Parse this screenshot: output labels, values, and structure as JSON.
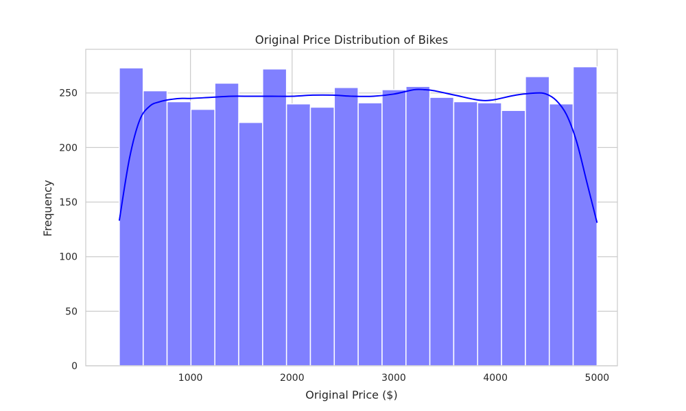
{
  "chart_data": {
    "type": "bar",
    "title": "Original Price Distribution of Bikes",
    "xlabel": "Original Price ($)",
    "ylabel": "Frequency",
    "xlim": [
      -30,
      5200
    ],
    "ylim": [
      0,
      290
    ],
    "grid": true,
    "x_ticks": [
      1000,
      2000,
      3000,
      4000,
      5000
    ],
    "y_ticks": [
      0,
      50,
      100,
      150,
      200,
      250
    ],
    "bins": [
      {
        "x0": 300,
        "x1": 535,
        "count": 273
      },
      {
        "x0": 535,
        "x1": 770,
        "count": 252
      },
      {
        "x0": 770,
        "x1": 1005,
        "count": 242
      },
      {
        "x0": 1005,
        "x1": 1240,
        "count": 235
      },
      {
        "x0": 1240,
        "x1": 1475,
        "count": 259
      },
      {
        "x0": 1475,
        "x1": 1710,
        "count": 223
      },
      {
        "x0": 1710,
        "x1": 1945,
        "count": 272
      },
      {
        "x0": 1945,
        "x1": 2180,
        "count": 240
      },
      {
        "x0": 2180,
        "x1": 2415,
        "count": 237
      },
      {
        "x0": 2415,
        "x1": 2650,
        "count": 255
      },
      {
        "x0": 2650,
        "x1": 2885,
        "count": 241
      },
      {
        "x0": 2885,
        "x1": 3120,
        "count": 253
      },
      {
        "x0": 3120,
        "x1": 3355,
        "count": 256
      },
      {
        "x0": 3355,
        "x1": 3590,
        "count": 246
      },
      {
        "x0": 3590,
        "x1": 3825,
        "count": 242
      },
      {
        "x0": 3825,
        "x1": 4060,
        "count": 241
      },
      {
        "x0": 4060,
        "x1": 4295,
        "count": 234
      },
      {
        "x0": 4295,
        "x1": 4530,
        "count": 265
      },
      {
        "x0": 4530,
        "x1": 4765,
        "count": 240
      },
      {
        "x0": 4765,
        "x1": 5000,
        "count": 274
      }
    ],
    "kde": {
      "x": [
        300,
        400,
        500,
        600,
        700,
        800,
        900,
        1000,
        1200,
        1400,
        1600,
        1800,
        2000,
        2200,
        2400,
        2600,
        2800,
        3000,
        3200,
        3300,
        3400,
        3600,
        3800,
        3900,
        4000,
        4200,
        4400,
        4500,
        4600,
        4700,
        4800,
        4900,
        5000
      ],
      "y": [
        133,
        190,
        225,
        238,
        242,
        244,
        245,
        245,
        246,
        247,
        247,
        247,
        247,
        248,
        248,
        247,
        247,
        249,
        253,
        253,
        252,
        248,
        244,
        243,
        244,
        248,
        250,
        249,
        243,
        230,
        205,
        168,
        131
      ]
    },
    "colors": {
      "bar_fill": "#8080ff",
      "bar_edge": "#ffffff",
      "kde_line": "#0000ff",
      "grid": "#cccccc",
      "frame": "#cccccc"
    }
  }
}
